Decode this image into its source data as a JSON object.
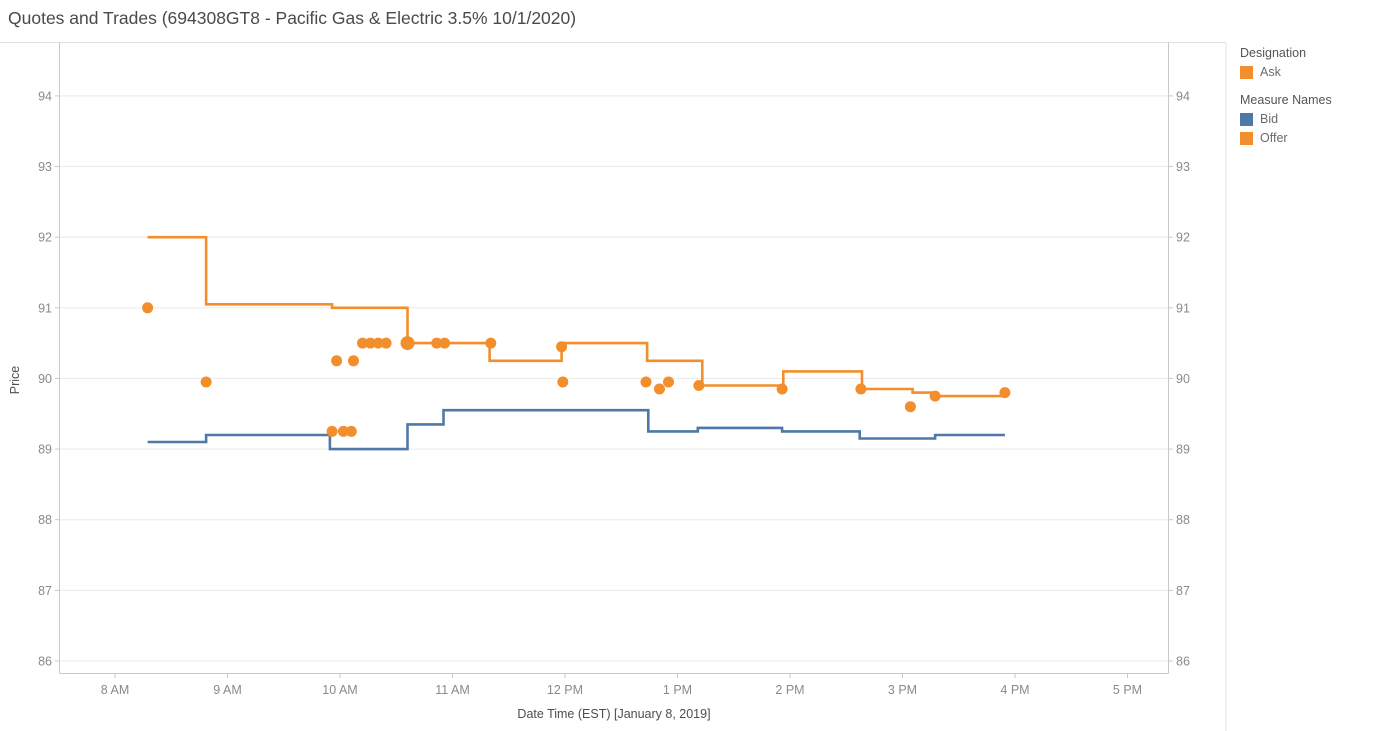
{
  "title": "Quotes and Trades (694308GT8 - Pacific Gas & Electric 3.5% 10/1/2020)",
  "legend": {
    "designation": {
      "header": "Designation",
      "items": [
        {
          "label": "Ask",
          "color": "#F28E2B"
        }
      ]
    },
    "measure_names": {
      "header": "Measure Names",
      "items": [
        {
          "label": "Bid",
          "color": "#4E79A7"
        },
        {
          "label": "Offer",
          "color": "#F28E2B"
        }
      ]
    }
  },
  "colors": {
    "offer": "#F28E2B",
    "bid": "#4E79A7",
    "ask_dot": "#F28E2B",
    "gridline": "#ededed",
    "axis_border": "#c9c9c9",
    "panel_divider": "#e0e0e0",
    "tick_label": "#8a8a8a",
    "axis_title": "#4e4e4e"
  },
  "chart_data": {
    "type": "line",
    "subtype": "step-lines-with-trade-scatter",
    "title": "Quotes and Trades (694308GT8 - Pacific Gas & Electric 3.5% 10/1/2020)",
    "xlabel": "Date Time (EST) [January 8, 2019]",
    "ylabel": "Price",
    "grid": true,
    "legend_position": "right",
    "ylim": [
      85.8,
      94.8
    ],
    "xlim_hours": [
      7.51,
      17.36
    ],
    "y_ticks": [
      86,
      87,
      88,
      89,
      90,
      91,
      92,
      93,
      94
    ],
    "x_ticks": [
      {
        "t": 8,
        "label": "8 AM"
      },
      {
        "t": 9,
        "label": "9 AM"
      },
      {
        "t": 10,
        "label": "10 AM"
      },
      {
        "t": 11,
        "label": "11 AM"
      },
      {
        "t": 12,
        "label": "12 PM"
      },
      {
        "t": 13,
        "label": "1 PM"
      },
      {
        "t": 14,
        "label": "2 PM"
      },
      {
        "t": 15,
        "label": "3 PM"
      },
      {
        "t": 16,
        "label": "4 PM"
      },
      {
        "t": 17,
        "label": "5 PM"
      }
    ],
    "series": [
      {
        "name": "Offer",
        "type": "step",
        "color": "#F28E2B",
        "end_t": 15.91,
        "points": [
          [
            8.29,
            92.0
          ],
          [
            8.81,
            91.05
          ],
          [
            9.93,
            91.0
          ],
          [
            10.6,
            90.5
          ],
          [
            11.33,
            90.25
          ],
          [
            11.97,
            90.5
          ],
          [
            12.73,
            90.25
          ],
          [
            13.22,
            89.9
          ],
          [
            13.94,
            90.1
          ],
          [
            14.64,
            89.85
          ],
          [
            15.09,
            89.8
          ],
          [
            15.29,
            89.75
          ]
        ]
      },
      {
        "name": "Bid",
        "type": "step",
        "color": "#4E79A7",
        "end_t": 15.91,
        "points": [
          [
            8.29,
            89.1
          ],
          [
            8.81,
            89.2
          ],
          [
            9.91,
            89.0
          ],
          [
            10.6,
            89.35
          ],
          [
            10.92,
            89.55
          ],
          [
            12.74,
            89.25
          ],
          [
            13.18,
            89.3
          ],
          [
            13.93,
            89.25
          ],
          [
            14.62,
            89.15
          ],
          [
            15.29,
            89.2
          ]
        ]
      },
      {
        "name": "Ask",
        "type": "scatter",
        "color": "#F28E2B",
        "points": [
          [
            8.29,
            91.0
          ],
          [
            8.81,
            89.95
          ],
          [
            9.93,
            89.25
          ],
          [
            9.97,
            90.25
          ],
          [
            10.03,
            89.25
          ],
          [
            10.1,
            89.25
          ],
          [
            10.12,
            90.25
          ],
          [
            10.2,
            90.5
          ],
          [
            10.27,
            90.5
          ],
          [
            10.34,
            90.5
          ],
          [
            10.41,
            90.5
          ],
          [
            10.6,
            90.5,
            7
          ],
          [
            10.86,
            90.5
          ],
          [
            10.93,
            90.5
          ],
          [
            11.34,
            90.5
          ],
          [
            11.97,
            90.45
          ],
          [
            11.98,
            89.95
          ],
          [
            12.72,
            89.95
          ],
          [
            12.84,
            89.85
          ],
          [
            12.92,
            89.95
          ],
          [
            13.19,
            89.9
          ],
          [
            13.93,
            89.85
          ],
          [
            14.63,
            89.85
          ],
          [
            15.07,
            89.6
          ],
          [
            15.29,
            89.75
          ],
          [
            15.91,
            89.8
          ]
        ]
      }
    ]
  }
}
